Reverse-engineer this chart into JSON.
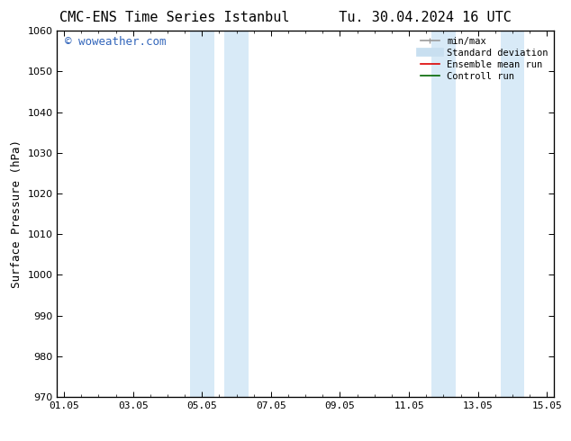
{
  "title_left": "CMC-ENS Time Series Istanbul",
  "title_right": "Tu. 30.04.2024 16 UTC",
  "ylabel": "Surface Pressure (hPa)",
  "ylim": [
    970,
    1060
  ],
  "yticks": [
    970,
    980,
    990,
    1000,
    1010,
    1020,
    1030,
    1040,
    1050,
    1060
  ],
  "xtick_labels": [
    "01.05",
    "03.05",
    "05.05",
    "07.05",
    "09.05",
    "11.05",
    "13.05",
    "15.05"
  ],
  "xtick_positions": [
    0,
    2,
    4,
    6,
    8,
    10,
    12,
    14
  ],
  "xlim": [
    -0.2,
    14.2
  ],
  "shaded_bands": [
    {
      "xmin": 3.65,
      "xmax": 4.35,
      "color": "#d8eaf7"
    },
    {
      "xmin": 4.65,
      "xmax": 5.35,
      "color": "#d8eaf7"
    },
    {
      "xmin": 10.65,
      "xmax": 11.35,
      "color": "#d8eaf7"
    },
    {
      "xmin": 12.65,
      "xmax": 13.35,
      "color": "#d8eaf7"
    }
  ],
  "background_color": "#ffffff",
  "watermark_text": "© woweather.com",
  "watermark_color": "#3366bb",
  "legend_entries": [
    {
      "label": "min/max",
      "color": "#999999",
      "lw": 1.2
    },
    {
      "label": "Standard deviation",
      "color": "#c8dff0",
      "lw": 7
    },
    {
      "label": "Ensemble mean run",
      "color": "#dd0000",
      "lw": 1.2
    },
    {
      "label": "Controll run",
      "color": "#006600",
      "lw": 1.2
    }
  ],
  "title_fontsize": 11,
  "ylabel_fontsize": 9,
  "tick_fontsize": 8,
  "legend_fontsize": 7.5,
  "watermark_fontsize": 9
}
